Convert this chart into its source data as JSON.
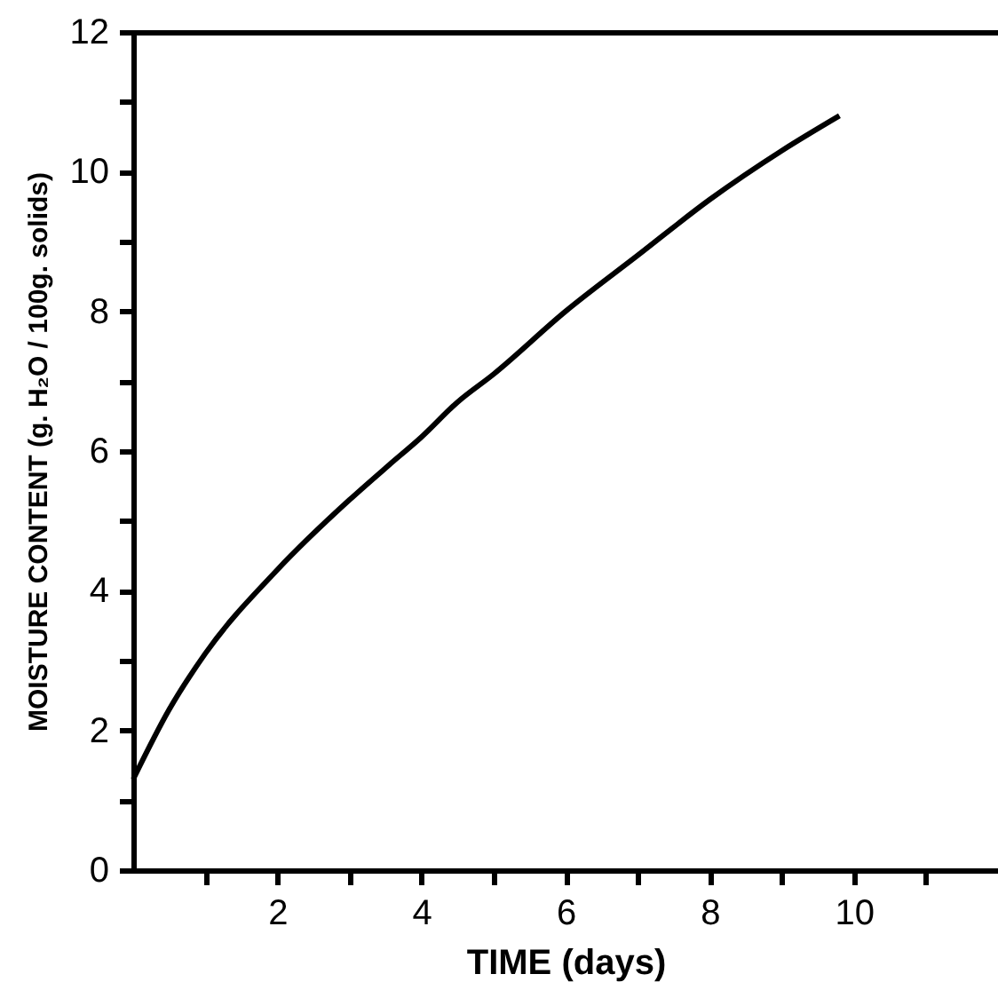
{
  "chart_data": {
    "type": "line",
    "xlabel": "TIME (days)",
    "ylabel": "MOISTURE CONTENT (g. H₂O / 100g. solids)",
    "x": [
      0,
      0.5,
      1,
      2,
      3,
      3.55,
      4,
      4.5,
      5,
      6,
      7,
      8,
      9,
      9.8
    ],
    "series": [
      {
        "color": "#000000",
        "values": [
          1.3,
          2.3,
          3.1,
          4.3,
          5.3,
          5.8,
          6.2,
          6.7,
          7.1,
          8.0,
          8.8,
          9.6,
          10.3,
          10.8
        ]
      }
    ],
    "xlim": [
      0,
      12
    ],
    "ylim": [
      0,
      12
    ],
    "xticks": [
      {
        "value": 1,
        "label": null
      },
      2,
      {
        "value": 3,
        "label": null
      },
      4,
      {
        "value": 5,
        "label": null
      },
      6,
      {
        "value": 7,
        "label": null
      },
      8,
      {
        "value": 9,
        "label": null
      },
      10,
      {
        "value": 11,
        "label": null
      }
    ],
    "yticks": [
      0,
      {
        "value": 1,
        "label": null
      },
      2,
      {
        "value": 3,
        "label": null
      },
      4,
      {
        "value": 5,
        "label": null
      },
      6,
      {
        "value": 7,
        "label": null
      },
      8,
      {
        "value": 9,
        "label": null
      },
      10,
      {
        "value": 11,
        "label": null
      },
      12
    ],
    "grid": false,
    "marker": "none",
    "line_style": "solid"
  }
}
